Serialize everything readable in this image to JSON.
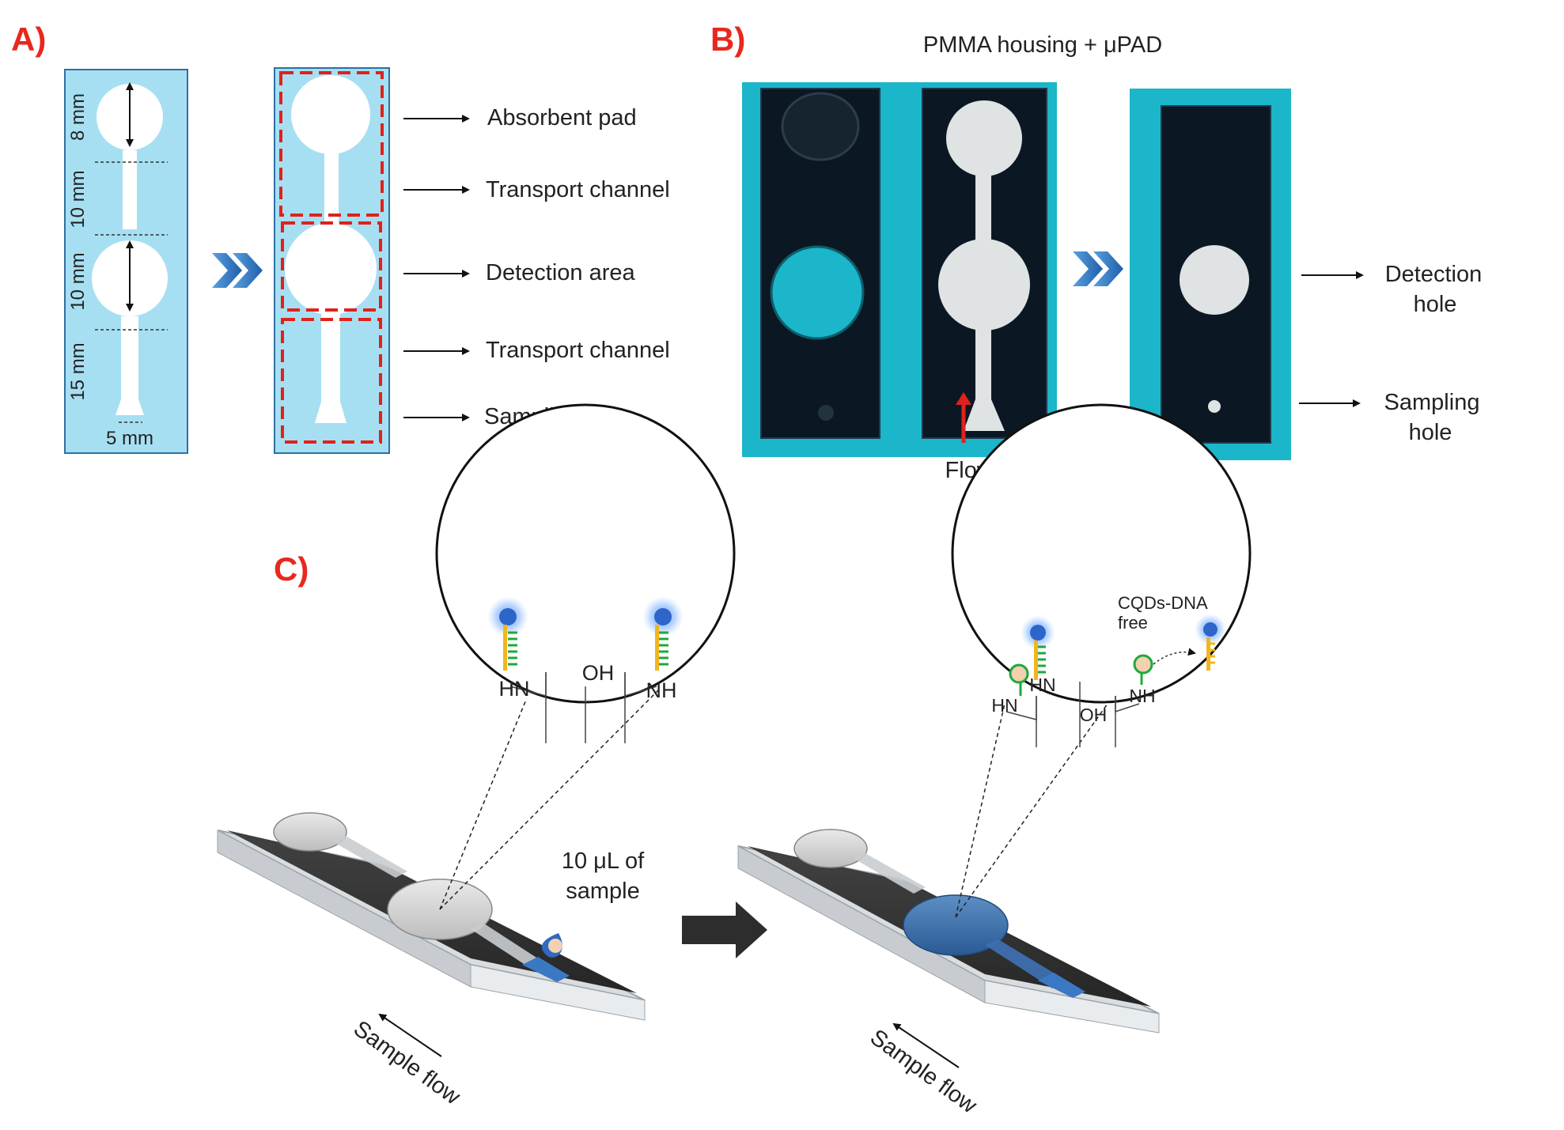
{
  "panels": {
    "a": "A)",
    "b": "B)",
    "c": "C)"
  },
  "panel_a": {
    "dims": {
      "d1": "8 mm",
      "d2": "10 mm",
      "d3": "10 mm",
      "d4": "15 mm",
      "width": "5 mm"
    },
    "labels": {
      "absorbent_pad": "Absorbent pad",
      "transport_channel_top": "Transport channel",
      "detection_area": "Detection area",
      "transport_channel_bottom": "Transport channel",
      "sampling_area": "Sampling area"
    }
  },
  "panel_b": {
    "title": "PMMA housing + μPAD",
    "flow_direction": "Flow direction",
    "detection_hole": [
      "Detection",
      "hole"
    ],
    "sampling_hole": [
      "Sampling",
      "hole"
    ]
  },
  "panel_c": {
    "left_zoom": {
      "oh": "OH",
      "hn": "HN",
      "nh": "NH"
    },
    "right_zoom": {
      "free_label": [
        "CQDs-DNA",
        "free"
      ],
      "oh": "OH",
      "hn1": "HN",
      "hn2": "HN",
      "nh": "NH"
    },
    "sample_volume": [
      "10 μL of",
      "sample"
    ],
    "sample_flow_left": "Sample flow",
    "sample_flow_right": "Sample flow"
  },
  "colors": {
    "panel_label": "#e8281e",
    "paper_bg": "#a7dff2",
    "photo_bg": "#1bb6c9",
    "housing": "#0b1824",
    "dashed_box": "#e0211c",
    "quantum_dot": "#2e65c8",
    "dna_yellow": "#f2b51d",
    "dna_green": "#1fa83b"
  }
}
